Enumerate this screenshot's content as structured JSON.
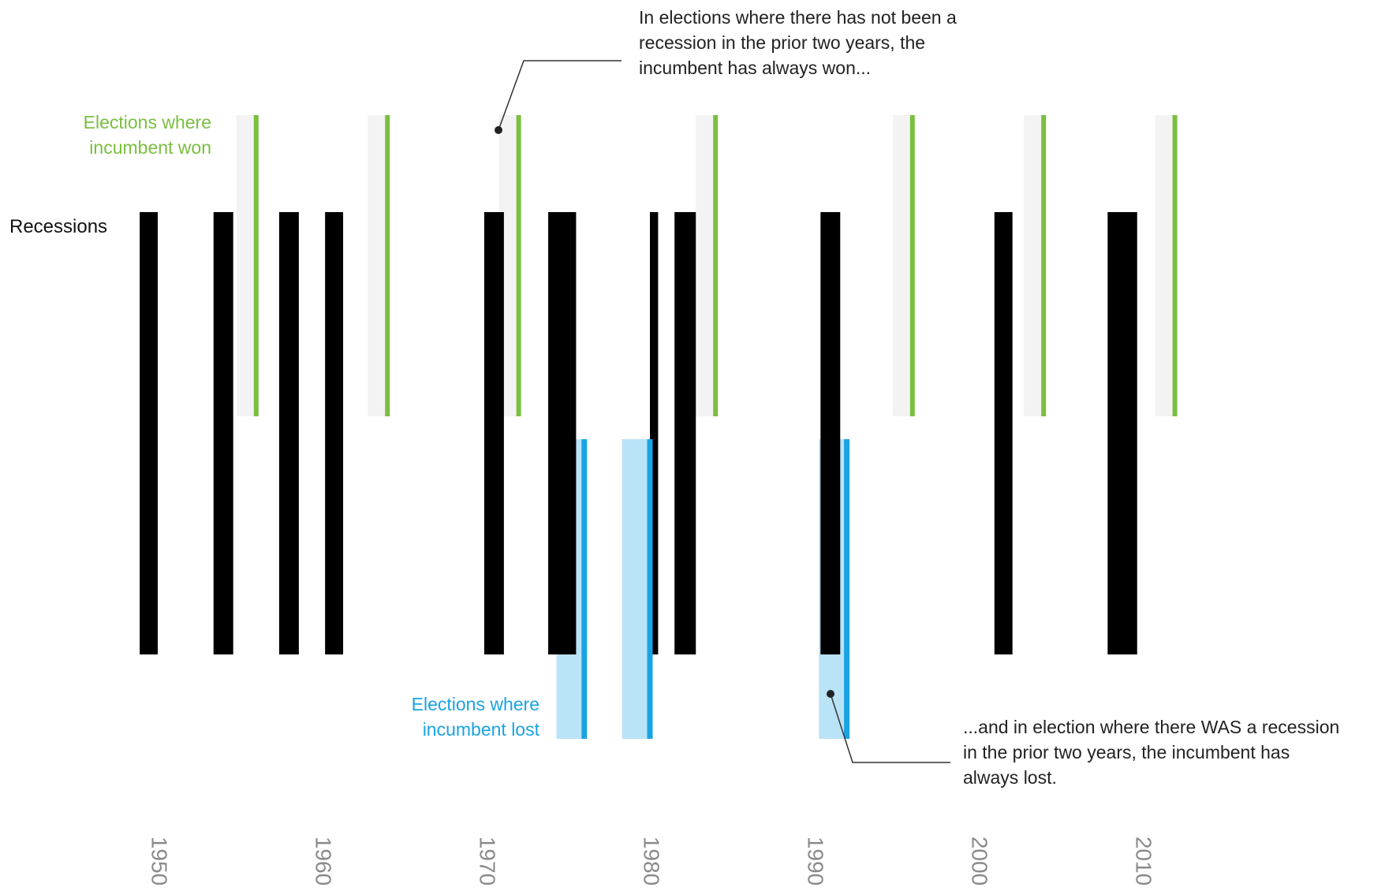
{
  "chart_data": {
    "type": "timeline",
    "xlim": [
      1943,
      2027
    ],
    "x_ticks": [
      "1950",
      "1960",
      "1970",
      "1980",
      "1990",
      "2000",
      "2010"
    ],
    "rows": {
      "won_label": "Elections where incumbent won",
      "won_label_lines": [
        "Elections where",
        "incumbent won"
      ],
      "recession_label": "Recessions",
      "lost_label": "Elections where incumbent lost",
      "lost_label_lines": [
        "Elections where",
        "incumbent lost"
      ]
    },
    "recessions": [
      {
        "start": 1948.9,
        "end": 1950.0
      },
      {
        "start": 1953.4,
        "end": 1954.6
      },
      {
        "start": 1957.4,
        "end": 1958.6
      },
      {
        "start": 1960.2,
        "end": 1961.3
      },
      {
        "start": 1969.9,
        "end": 1971.1
      },
      {
        "start": 1973.8,
        "end": 1975.5
      },
      {
        "start": 1980.0,
        "end": 1980.5
      },
      {
        "start": 1981.5,
        "end": 1982.8
      },
      {
        "start": 1990.4,
        "end": 1991.6
      },
      {
        "start": 2001.0,
        "end": 2002.1
      },
      {
        "start": 2007.9,
        "end": 2009.7
      }
    ],
    "elections_won": [
      {
        "year": 1956,
        "window_start": 1954.8
      },
      {
        "year": 1964,
        "window_start": 1962.8
      },
      {
        "year": 1972,
        "window_start": 1970.8
      },
      {
        "year": 1984,
        "window_start": 1982.8
      },
      {
        "year": 1996,
        "window_start": 1994.8
      },
      {
        "year": 2004,
        "window_start": 2002.8
      },
      {
        "year": 2012,
        "window_start": 2010.8
      }
    ],
    "elections_lost": [
      {
        "year": 1976,
        "window_start": 1974.3
      },
      {
        "year": 1980,
        "window_start": 1978.3
      },
      {
        "year": 1992,
        "window_start": 1990.3
      }
    ],
    "colors": {
      "won": "#7abf3f",
      "won_window": "#f3f3f3",
      "lost": "#1aa3e3",
      "lost_window": "#b9e3f7",
      "recession": "#000000",
      "annotation": "#222222",
      "tick": "#8a8a8a"
    },
    "annotations": [
      {
        "id": "top",
        "lines": [
          "In elections where there has not been a",
          "recession in the prior two years, the",
          "incumbent has always won..."
        ]
      },
      {
        "id": "bottom",
        "lines": [
          "...and in election where there WAS a recession",
          "in the prior two years, the incumbent has",
          "always lost."
        ]
      }
    ]
  }
}
